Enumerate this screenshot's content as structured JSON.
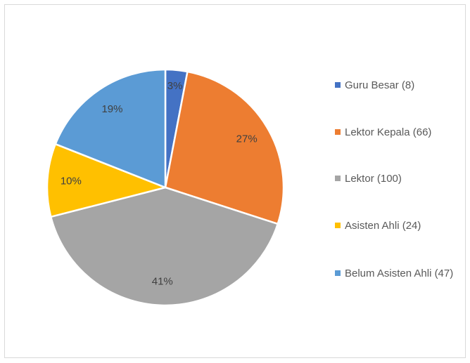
{
  "chart_data": {
    "type": "pie",
    "categories": [
      "Guru Besar (8)",
      "Lektor Kepala (66)",
      "Lektor (100)",
      "Asisten Ahli (24)",
      "Belum Asisten Ahli (47)"
    ],
    "values": [
      3,
      27,
      41,
      10,
      19
    ],
    "value_labels": [
      "3%",
      "27%",
      "41%",
      "10%",
      "19%"
    ],
    "colors": [
      "#4472c4",
      "#ed7d31",
      "#a5a5a5",
      "#ffc000",
      "#5b9bd5"
    ],
    "legend": "right"
  }
}
